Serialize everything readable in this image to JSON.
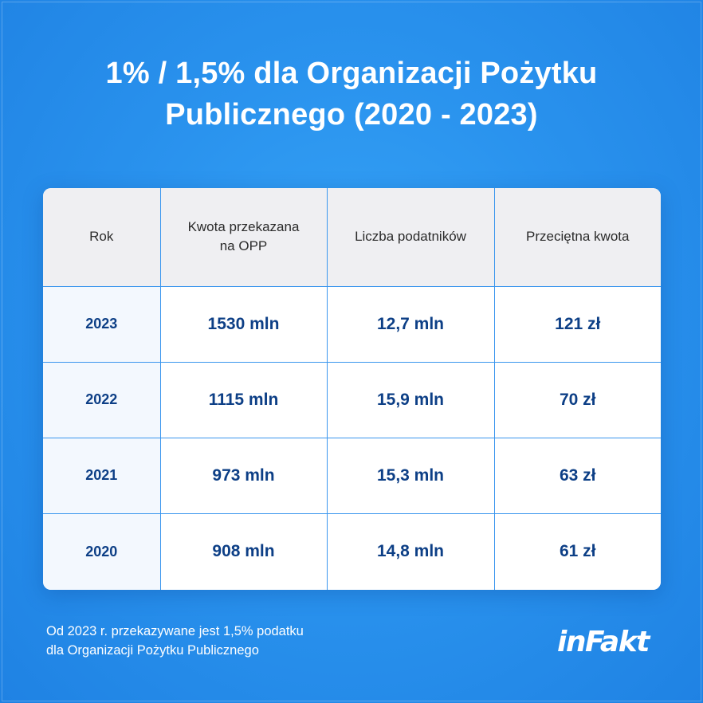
{
  "title": {
    "line1": "1% / 1,5% dla Organizacji Pożytku",
    "line2": "Publicznego (2020 - 2023)"
  },
  "table": {
    "headers": [
      "Rok",
      "Kwota przekazana na OPP",
      "Liczba podatników",
      "Przeciętna kwota"
    ],
    "rows": [
      {
        "year": "2023",
        "amount": "1530 mln",
        "taxpayers": "12,7 mln",
        "average": "121 zł"
      },
      {
        "year": "2022",
        "amount": "1115 mln",
        "taxpayers": "15,9 mln",
        "average": "70 zł"
      },
      {
        "year": "2021",
        "amount": "973 mln",
        "taxpayers": "15,3 mln",
        "average": "63 zł"
      },
      {
        "year": "2020",
        "amount": "908 mln",
        "taxpayers": "14,8 mln",
        "average": "61 zł"
      }
    ]
  },
  "footnote": {
    "line1": "Od 2023 r. przekazywane jest 1,5% podatku",
    "line2": "dla Organizacji Pożytku Publicznego"
  },
  "logo": {
    "text": "inFakt"
  },
  "colors": {
    "background": "#2a93ee",
    "header_bg": "#efeff2",
    "cell_text": "#0d3f86",
    "grid": "#3a96ee"
  }
}
